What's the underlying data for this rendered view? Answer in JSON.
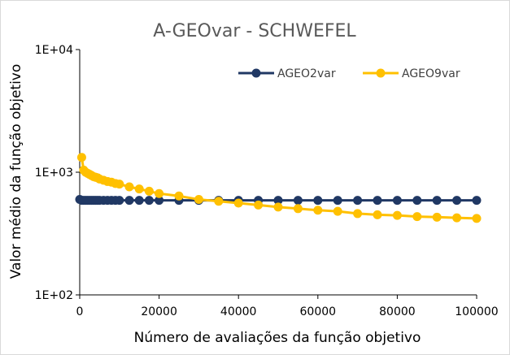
{
  "chart_data": {
    "type": "line",
    "title": "A-GEOvar - SCHWEFEL",
    "xlabel": "Número de avaliações da função objetivo",
    "ylabel": "Valor médio da função objetivo",
    "yscale": "log",
    "xlim": [
      0,
      100000
    ],
    "ylim": [
      100,
      10000
    ],
    "x_ticks": [
      0,
      20000,
      40000,
      60000,
      80000,
      100000
    ],
    "x_tick_labels": [
      "0",
      "20000",
      "40000",
      "60000",
      "80000",
      "100000"
    ],
    "y_ticks": [
      100,
      1000,
      10000
    ],
    "y_tick_labels": [
      "1E+02",
      "1E+03",
      "1E+04"
    ],
    "grid": false,
    "legend_position": "top-right",
    "series": [
      {
        "name": "AGEO2var",
        "color": "#203864",
        "x": [
          0,
          500,
          1000,
          1500,
          2000,
          2500,
          3000,
          3500,
          4000,
          4500,
          5000,
          6000,
          7000,
          8000,
          9000,
          10000,
          12500,
          15000,
          17500,
          20000,
          25000,
          30000,
          35000,
          40000,
          45000,
          50000,
          55000,
          60000,
          65000,
          70000,
          75000,
          80000,
          85000,
          90000,
          95000,
          100000
        ],
        "y": [
          600,
          590,
          590,
          590,
          590,
          590,
          590,
          590,
          590,
          590,
          590,
          590,
          590,
          590,
          590,
          590,
          590,
          590,
          590,
          590,
          590,
          590,
          590,
          590,
          590,
          590,
          590,
          590,
          590,
          590,
          590,
          590,
          590,
          590,
          590,
          590
        ]
      },
      {
        "name": "AGEO9var",
        "color": "#ffc000",
        "x": [
          500,
          1000,
          1500,
          2000,
          2500,
          3000,
          3500,
          4000,
          4500,
          5000,
          6000,
          7000,
          8000,
          9000,
          10000,
          12500,
          15000,
          17500,
          20000,
          25000,
          30000,
          35000,
          40000,
          45000,
          50000,
          55000,
          60000,
          65000,
          70000,
          75000,
          80000,
          85000,
          90000,
          95000,
          100000
        ],
        "y": [
          1320,
          1040,
          1000,
          980,
          960,
          940,
          920,
          910,
          900,
          880,
          860,
          840,
          830,
          810,
          800,
          760,
          730,
          700,
          670,
          640,
          600,
          580,
          560,
          540,
          520,
          505,
          490,
          480,
          460,
          450,
          445,
          435,
          430,
          425,
          420
        ]
      }
    ]
  }
}
